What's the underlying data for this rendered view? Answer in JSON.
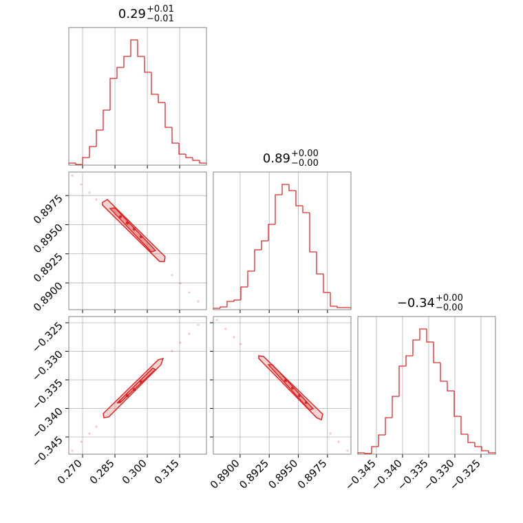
{
  "chart_data": {
    "type": "corner",
    "color": "#d62728",
    "grid": true,
    "params": [
      {
        "lim": [
          0.26362,
          0.32744
        ],
        "ticks": [
          {
            "value": 0.27,
            "label": "0.270"
          },
          0.285,
          {
            "value": 0.3,
            "label": "0.300"
          },
          0.315
        ]
      },
      {
        "lim": [
          0.8877,
          0.89952
        ],
        "ticks": [
          {
            "value": 0.89,
            "label": "0.8900"
          },
          0.8925,
          {
            "value": 0.895,
            "label": "0.8950"
          },
          0.8975
        ]
      },
      {
        "lim": [
          -0.34801,
          -0.32392
        ],
        "ticks": [
          {
            "value": -0.345,
            "label": "−0.345"
          },
          {
            "value": -0.34,
            "label": "−0.340"
          },
          {
            "value": -0.335,
            "label": "−0.335"
          },
          {
            "value": -0.33,
            "label": "−0.330"
          },
          {
            "value": -0.325,
            "label": "−0.325"
          }
        ]
      }
    ],
    "hists": [
      {
        "title": {
          "median": "0.29",
          "plus": "+0.01",
          "minus": "−0.01"
        },
        "ylim": [
          0,
          200
        ],
        "bins": [
          0.2636,
          0.26679,
          0.26998,
          0.27317,
          0.27636,
          0.27955,
          0.28274,
          0.28593,
          0.28912,
          0.29231,
          0.2955,
          0.29869,
          0.30188,
          0.30507,
          0.30826,
          0.31145,
          0.31464,
          0.31783,
          0.32102,
          0.32421,
          0.3274
        ],
        "counts": [
          3,
          1,
          11,
          27,
          51,
          80,
          126,
          142,
          158,
          182,
          158,
          135,
          103,
          91,
          55,
          32,
          16,
          11,
          7,
          3
        ]
      },
      {
        "title": {
          "median": "0.89",
          "plus": "+0.00",
          "minus": "−0.00"
        },
        "ylim": [
          0,
          200
        ],
        "bins": [
          0.8877,
          0.888291,
          0.888882,
          0.889473,
          0.890064,
          0.890655,
          0.891246,
          0.891837,
          0.892428,
          0.893019,
          0.89361,
          0.894201,
          0.894792,
          0.895383,
          0.895974,
          0.896565,
          0.897156,
          0.897747,
          0.898338,
          0.898929,
          0.89952
        ],
        "counts": [
          2,
          4,
          12,
          14,
          33,
          56,
          87,
          100,
          124,
          167,
          182,
          173,
          151,
          141,
          84,
          52,
          25,
          5,
          3,
          3
        ]
      },
      {
        "title": {
          "median": "−0.34",
          "plus": "+0.00",
          "minus": "−0.00"
        },
        "ylim": [
          0,
          200
        ],
        "bins": [
          -0.34855,
          -0.347234,
          -0.345918,
          -0.344602,
          -0.343286,
          -0.34197,
          -0.340654,
          -0.339338,
          -0.338022,
          -0.336706,
          -0.33539,
          -0.334074,
          -0.332758,
          -0.331442,
          -0.330126,
          -0.32881,
          -0.327494,
          -0.326178,
          -0.324862,
          -0.323546,
          -0.32223
        ],
        "counts": [
          2,
          1,
          11,
          28,
          53,
          84,
          128,
          143,
          166,
          182,
          163,
          133,
          106,
          92,
          55,
          29,
          17,
          11,
          5,
          2
        ]
      }
    ],
    "pairs": [
      [
        {
          "points": {
            "x": [
              0.26522,
              0.26936,
              0.27319,
              0.27638,
              0.31147,
              0.3153,
              0.31945,
              0.32359
            ],
            "y": [
              0.89922,
              0.89846,
              0.89775,
              0.89716,
              0.89066,
              0.88995,
              0.88918,
              0.88841
            ]
          },
          "outer": {
            "x": [
              0.27925,
              0.28148,
              0.30828,
              0.30796,
              0.30573,
              0.27925
            ],
            "y": [
              0.89692,
              0.89716,
              0.89225,
              0.89184,
              0.89184,
              0.89668
            ]
          },
          "inner": {
            "x": [
              0.28276,
              0.28499,
              0.30381,
              0.3019
            ],
            "y": [
              0.89639,
              0.89645,
              0.89278,
              0.89266
            ]
          },
          "dense": {
            "x": [
              0.28755,
              0.29074,
              0.29393,
              0.29712
            ],
            "y": [
              0.89568,
              0.89515,
              0.89462,
              0.89397
            ]
          }
        }
      ],
      [
        {
          "points": {
            "x": [
              0.26522,
              0.26936,
              0.27319,
              0.27638,
              0.31147,
              0.3153,
              0.31945,
              0.32359
            ],
            "y": [
              -0.34741,
              -0.34584,
              -0.3444,
              -0.34319,
              -0.32994,
              -0.32849,
              -0.32692,
              -0.32536
            ]
          },
          "outer": {
            "x": [
              0.27989,
              0.28212,
              0.30637,
              0.30733,
              0.30509,
              0.27957
            ],
            "y": [
              -0.34162,
              -0.3415,
              -0.33235,
              -0.33126,
              -0.3315,
              -0.3409
            ]
          },
          "inner": {
            "x": [
              0.28595,
              0.28786,
              0.30381,
              0.30254
            ],
            "y": [
              -0.33909,
              -0.33885,
              -0.33319,
              -0.33295
            ]
          },
          "dense": {
            "x": [
              0.28723,
              0.29074,
              0.29393,
              0.29712
            ],
            "y": [
              -0.33885,
              -0.33777,
              -0.33668,
              -0.33536
            ]
          }
        },
        {
          "points": {
            "x": [
              0.888,
              0.88876,
              0.88947,
              0.89006,
              0.89775,
              0.89846,
              0.89922
            ],
            "y": [
              -0.32451,
              -0.32608,
              -0.32753,
              -0.32873,
              -0.3444,
              -0.34584,
              -0.34741
            ]
          },
          "outer": {
            "x": [
              0.8916,
              0.89201,
              0.8971,
              0.89698,
              0.89657,
              0.8916
            ],
            "y": [
              -0.33078,
              -0.3309,
              -0.34102,
              -0.34199,
              -0.34162,
              -0.33126
            ]
          },
          "inner": {
            "x": [
              0.89243,
              0.89278,
              0.89627,
              0.89597
            ],
            "y": [
              -0.33235,
              -0.33235,
              -0.34006,
              -0.3403
            ]
          },
          "dense": {
            "x": [
              0.89391,
              0.8945,
              0.89509,
              0.89568
            ],
            "y": [
              -0.33512,
              -0.33644,
              -0.33777,
              -0.33897
            ]
          }
        }
      ]
    ]
  }
}
